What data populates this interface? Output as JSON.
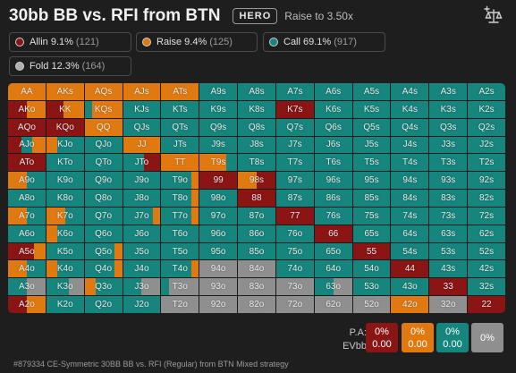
{
  "header": {
    "title": "30bb BB vs. RFI from BTN",
    "badge": "HERO",
    "subtitle": "Raise to 3.50x"
  },
  "colors": {
    "allin": "#8b1414",
    "raise": "#e07a10",
    "call": "#16857d",
    "fold": "#8f8f8f"
  },
  "actions": [
    {
      "key": "allin",
      "label": "Allin 9.1%",
      "count": "(121)"
    },
    {
      "key": "raise",
      "label": "Raise 9.4%",
      "count": "(125)"
    },
    {
      "key": "call",
      "label": "Call 69.1%",
      "count": "(917)"
    },
    {
      "key": "fold",
      "label": "Fold 12.3%",
      "count": "(164)"
    }
  ],
  "grid": {
    "rows": [
      [
        "AA",
        "AKs",
        "AQs",
        "AJs",
        "ATs",
        "A9s",
        "A8s",
        "A7s",
        "A6s",
        "A5s",
        "A4s",
        "A3s",
        "A2s"
      ],
      [
        "AKo",
        "KK",
        "KQs",
        "KJs",
        "KTs",
        "K9s",
        "K8s",
        "K7s",
        "K6s",
        "K5s",
        "K4s",
        "K3s",
        "K2s"
      ],
      [
        "AQo",
        "KQo",
        "QQ",
        "QJs",
        "QTs",
        "Q9s",
        "Q8s",
        "Q7s",
        "Q6s",
        "Q5s",
        "Q4s",
        "Q3s",
        "Q2s"
      ],
      [
        "AJo",
        "KJo",
        "QJo",
        "JJ",
        "JTs",
        "J9s",
        "J8s",
        "J7s",
        "J6s",
        "J5s",
        "J4s",
        "J3s",
        "J2s"
      ],
      [
        "ATo",
        "KTo",
        "QTo",
        "JTo",
        "TT",
        "T9s",
        "T8s",
        "T7s",
        "T6s",
        "T5s",
        "T4s",
        "T3s",
        "T2s"
      ],
      [
        "A9o",
        "K9o",
        "Q9o",
        "J9o",
        "T9o",
        "99",
        "98s",
        "97s",
        "96s",
        "95s",
        "94s",
        "93s",
        "92s"
      ],
      [
        "A8o",
        "K8o",
        "Q8o",
        "J8o",
        "T8o",
        "98o",
        "88",
        "87s",
        "86s",
        "85s",
        "84s",
        "83s",
        "82s"
      ],
      [
        "A7o",
        "K7o",
        "Q7o",
        "J7o",
        "T7o",
        "97o",
        "87o",
        "77",
        "76s",
        "75s",
        "74s",
        "73s",
        "72s"
      ],
      [
        "A6o",
        "K6o",
        "Q6o",
        "J6o",
        "T6o",
        "96o",
        "86o",
        "76o",
        "66",
        "65s",
        "64s",
        "63s",
        "62s"
      ],
      [
        "A5o",
        "K5o",
        "Q5o",
        "J5o",
        "T5o",
        "95o",
        "85o",
        "75o",
        "65o",
        "55",
        "54s",
        "53s",
        "52s"
      ],
      [
        "A4o",
        "K4o",
        "Q4o",
        "J4o",
        "T4o",
        "94o",
        "84o",
        "74o",
        "64o",
        "54o",
        "44",
        "43s",
        "42s"
      ],
      [
        "A3o",
        "K3o",
        "Q3o",
        "J3o",
        "T3o",
        "93o",
        "83o",
        "73o",
        "63o",
        "53o",
        "43o",
        "33",
        "32s"
      ],
      [
        "A2o",
        "K2o",
        "Q2o",
        "J2o",
        "T2o",
        "92o",
        "82o",
        "72o",
        "62o",
        "52o",
        "42o",
        "32o",
        "22"
      ]
    ],
    "special": {
      "AA": [
        [
          "raise",
          1
        ]
      ],
      "AKs": [
        [
          "raise",
          1
        ]
      ],
      "AQs": [
        [
          "raise",
          1
        ]
      ],
      "AJs": [
        [
          "raise",
          1
        ]
      ],
      "ATs": [
        [
          "raise",
          1
        ]
      ],
      "AKo": [
        [
          "allin",
          0.5
        ],
        [
          "raise",
          0.5
        ]
      ],
      "KK": [
        [
          "allin",
          0.45
        ],
        [
          "raise",
          0.55
        ]
      ],
      "KQs": [
        [
          "call",
          0.2
        ],
        [
          "raise",
          0.8
        ]
      ],
      "AQo": [
        [
          "allin",
          1
        ]
      ],
      "KQo": [
        [
          "allin",
          1
        ]
      ],
      "QQ": [
        [
          "raise",
          1
        ]
      ],
      "AJo": [
        [
          "allin",
          0.35
        ],
        [
          "call",
          0.3
        ],
        [
          "raise",
          0.35
        ]
      ],
      "KJo": [
        [
          "raise",
          0.3
        ],
        [
          "call",
          0.7
        ]
      ],
      "JJ": [
        [
          "raise",
          1
        ]
      ],
      "ATo": [
        [
          "allin",
          1
        ]
      ],
      "JTo": [
        [
          "call",
          0.55
        ],
        [
          "allin",
          0.45
        ]
      ],
      "TT": [
        [
          "raise",
          1
        ]
      ],
      "T9s": [
        [
          "raise",
          0.7
        ],
        [
          "call",
          0.3
        ]
      ],
      "K7s": [
        [
          "allin",
          1
        ]
      ],
      "A9o": [
        [
          "raise",
          0.5
        ],
        [
          "call",
          0.5
        ]
      ],
      "99": [
        [
          "allin",
          1
        ]
      ],
      "98s": [
        [
          "raise",
          0.5
        ],
        [
          "allin",
          0.5
        ]
      ],
      "88": [
        [
          "allin",
          1
        ]
      ],
      "A7o": [
        [
          "raise",
          0.5
        ],
        [
          "call",
          0.5
        ]
      ],
      "K7o": [
        [
          "raise",
          0.5
        ],
        [
          "call",
          0.5
        ]
      ],
      "77": [
        [
          "allin",
          1
        ]
      ],
      "66": [
        [
          "allin",
          1
        ]
      ],
      "A5o": [
        [
          "allin",
          0.7
        ],
        [
          "raise",
          0.3
        ]
      ],
      "55": [
        [
          "allin",
          1
        ]
      ],
      "A4o": [
        [
          "raise",
          0.5
        ],
        [
          "call",
          0.5
        ]
      ],
      "44": [
        [
          "allin",
          1
        ]
      ],
      "A3o": [
        [
          "call",
          0.5
        ],
        [
          "fold",
          0.5
        ]
      ],
      "33": [
        [
          "allin",
          1
        ]
      ],
      "A2o": [
        [
          "allin",
          0.5
        ],
        [
          "raise",
          0.5
        ]
      ],
      "22": [
        [
          "allin",
          1
        ]
      ],
      "K6o": [
        [
          "raise",
          0.3
        ],
        [
          "call",
          0.7
        ]
      ],
      "K4o": [
        [
          "raise",
          0.3
        ],
        [
          "call",
          0.7
        ]
      ],
      "K3o": [
        [
          "call",
          0.6
        ],
        [
          "fold",
          0.4
        ]
      ],
      "K2o": [
        [
          "call",
          1
        ]
      ],
      "Q6o": [
        [
          "call",
          1
        ]
      ],
      "Q5o": [
        [
          "call",
          0.8
        ],
        [
          "raise",
          0.2
        ]
      ],
      "Q4o": [
        [
          "call",
          0.8
        ],
        [
          "raise",
          0.2
        ]
      ],
      "Q3o": [
        [
          "raise",
          0.3
        ],
        [
          "call",
          0.7
        ]
      ],
      "J7o": [
        [
          "call",
          0.8
        ],
        [
          "raise",
          0.2
        ]
      ],
      "J6o": [
        [
          "call",
          1
        ]
      ],
      "J3o": [
        [
          "call",
          0.5
        ],
        [
          "fold",
          0.5
        ]
      ],
      "T9o": [
        [
          "call",
          0.8
        ],
        [
          "raise",
          0.2
        ]
      ],
      "T8o": [
        [
          "call",
          0.8
        ],
        [
          "raise",
          0.2
        ]
      ],
      "T7o": [
        [
          "call",
          0.8
        ],
        [
          "raise",
          0.2
        ]
      ],
      "T4o": [
        [
          "call",
          0.8
        ],
        [
          "raise",
          0.2
        ]
      ],
      "T3o": [
        [
          "call",
          0.2
        ],
        [
          "fold",
          0.8
        ]
      ],
      "T2o": [
        [
          "fold",
          1
        ]
      ],
      "94o": [
        [
          "fold",
          1
        ]
      ],
      "93o": [
        [
          "fold",
          1
        ]
      ],
      "92o": [
        [
          "fold",
          1
        ]
      ],
      "84o": [
        [
          "fold",
          1
        ]
      ],
      "83o": [
        [
          "fold",
          1
        ]
      ],
      "82o": [
        [
          "fold",
          1
        ]
      ],
      "73o": [
        [
          "fold",
          1
        ]
      ],
      "72o": [
        [
          "fold",
          1
        ]
      ],
      "63o": [
        [
          "call",
          0.5
        ],
        [
          "fold",
          0.5
        ]
      ],
      "62o": [
        [
          "fold",
          1
        ]
      ],
      "52o": [
        [
          "fold",
          1
        ]
      ],
      "42o": [
        [
          "raise",
          1
        ]
      ],
      "32o": [
        [
          "fold",
          1
        ]
      ],
      "54o": [
        [
          "call",
          1
        ]
      ],
      "43o": [
        [
          "call",
          1
        ]
      ],
      "53o": [
        [
          "call",
          1
        ]
      ],
      "98o": [
        [
          "call",
          1
        ]
      ]
    }
  },
  "summary": {
    "pa_label": "P.A:",
    "ev_label": "EVbb",
    "boxes": [
      {
        "color": "allin",
        "pa": "0%",
        "ev": "0.00"
      },
      {
        "color": "raise",
        "pa": "0%",
        "ev": "0.00"
      },
      {
        "color": "call",
        "pa": "0%",
        "ev": "0.00"
      },
      {
        "color": "fold",
        "pa": "0%",
        "ev": ""
      }
    ]
  },
  "footer": "#879334 CE-Symmetric 30BB BB vs. RFI (Regular) from BTN Mixed strategy"
}
